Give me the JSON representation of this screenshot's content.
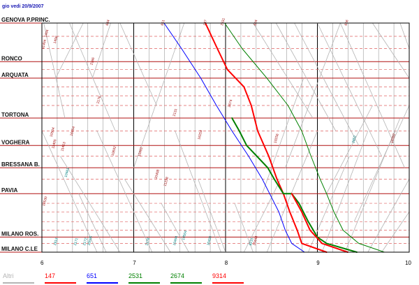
{
  "date_label": "gio vedi 20/9/2007",
  "stations": [
    {
      "name": "GENOVA P.PRINC.",
      "label": "GENOVA P.PRINC.",
      "km": 0
    },
    {
      "name": "RONCO",
      "label": "RONCO",
      "km": 21.5
    },
    {
      "name": "ARQUATA",
      "label": "ARQUATA",
      "km": 30.7
    },
    {
      "name": "TORTONA",
      "label": "TORTONA",
      "km": 52.9
    },
    {
      "name": "VOGHERA",
      "label": "VOGHERA",
      "km": 68.2
    },
    {
      "name": "BRESSANA B.",
      "label": "BRESSANA B.",
      "km": 80.6
    },
    {
      "name": "PAVIA",
      "label": "PAVIA",
      "km": 95.0
    },
    {
      "name": "MILANO ROS.",
      "label": "MILANO ROS.",
      "km": 119.2
    },
    {
      "name": "MILANO C.LE",
      "label": "MILANO C.LE",
      "km": 127.6
    }
  ],
  "minor_stops_km": [
    7.4,
    14.2,
    25.9,
    35.5,
    40.5,
    45.9,
    60.1,
    74.1,
    86.9,
    100.4,
    105.2,
    110.6,
    115.4,
    122.7
  ],
  "time_axis": {
    "start": 6,
    "end": 10,
    "ticks": [
      "6",
      "7",
      "8",
      "9",
      "10"
    ]
  },
  "colors": {
    "station_line": "#b01010",
    "minor_line": "#e06060",
    "hour_line": "#000000",
    "grid_line": "#9a9a9a",
    "other_trains": "#b4b4b4",
    "frame": "#000000",
    "t147": "#ff0000",
    "t651": "#0000ff",
    "t2531": "#008000",
    "t2674": "#008000",
    "t9314": "#ff0000"
  },
  "legend": [
    {
      "id": "altri",
      "label": "Altri",
      "color": "#b4b4b4"
    },
    {
      "id": "t147",
      "label": "147",
      "color": "#ff0000"
    },
    {
      "id": "t651",
      "label": "651",
      "color": "#0000ff"
    },
    {
      "id": "t2531",
      "label": "2531",
      "color": "#008000"
    },
    {
      "id": "t2674",
      "label": "2674",
      "color": "#008000"
    },
    {
      "id": "t9314",
      "label": "9314",
      "color": "#ff0000"
    }
  ],
  "highlighted_trains": [
    {
      "id": "t651",
      "number": "651",
      "color": "#0000ff",
      "width": 1,
      "points": [
        [
          7.33,
          0
        ],
        [
          7.52,
          14.2
        ],
        [
          7.73,
          30.7
        ],
        [
          7.9,
          45.9
        ],
        [
          8.07,
          60.1
        ],
        [
          8.25,
          74.1
        ],
        [
          8.4,
          86.9
        ],
        [
          8.48,
          95.0
        ],
        [
          8.58,
          105.2
        ],
        [
          8.65,
          115.4
        ],
        [
          8.72,
          122.7
        ],
        [
          8.86,
          127.6
        ]
      ]
    },
    {
      "id": "t147",
      "number": "147",
      "color": "#ff0000",
      "width": 2,
      "points": [
        [
          7.78,
          0
        ],
        [
          7.91,
          14.2
        ],
        [
          8.02,
          25.9
        ],
        [
          8.2,
          35.5
        ],
        [
          8.28,
          45.9
        ],
        [
          8.35,
          60.1
        ],
        [
          8.47,
          74.1
        ],
        [
          8.56,
          86.9
        ],
        [
          8.63,
          95.0
        ],
        [
          8.7,
          105.2
        ],
        [
          8.78,
          115.4
        ],
        [
          8.83,
          122.7
        ],
        [
          9.1,
          127.6
        ]
      ]
    },
    {
      "id": "t2531",
      "number": "2531",
      "color": "#008000",
      "width": 1,
      "points": [
        [
          7.99,
          0
        ],
        [
          8.18,
          14.2
        ],
        [
          8.45,
          30.7
        ],
        [
          8.68,
          45.9
        ],
        [
          8.83,
          60.1
        ],
        [
          8.93,
          74.1
        ],
        [
          9.03,
          86.9
        ],
        [
          9.1,
          95.0
        ],
        [
          9.18,
          105.2
        ],
        [
          9.28,
          115.4
        ],
        [
          9.45,
          122.7
        ],
        [
          9.73,
          127.6
        ]
      ]
    },
    {
      "id": "t2674",
      "number": "2674",
      "color": "#008000",
      "width": 2,
      "points": [
        [
          8.07,
          52.9
        ],
        [
          8.15,
          60.1
        ],
        [
          8.23,
          68.2
        ],
        [
          8.34,
          74.1
        ],
        [
          8.46,
          80.6
        ],
        [
          8.53,
          86.9
        ],
        [
          8.63,
          95.0
        ],
        [
          8.72,
          95.0
        ],
        [
          8.8,
          100.4
        ],
        [
          8.9,
          110.6
        ],
        [
          9.0,
          119.2
        ],
        [
          9.1,
          122.7
        ],
        [
          9.43,
          127.6
        ]
      ]
    },
    {
      "id": "t9314",
      "number": "9314",
      "color": "#ff0000",
      "width": 2,
      "points": [
        [
          8.72,
          95.0
        ],
        [
          8.83,
          105.2
        ],
        [
          8.92,
          115.4
        ],
        [
          9.05,
          122.7
        ],
        [
          9.33,
          127.6
        ]
      ]
    }
  ],
  "other_trains": [
    [
      [
        6.02,
        0
      ],
      [
        6.25,
        52.9
      ]
    ],
    [
      [
        6.15,
        30.7
      ],
      [
        6.45,
        0
      ]
    ],
    [
      [
        6.3,
        0
      ],
      [
        6.8,
        60.1
      ]
    ],
    [
      [
        6.55,
        30.7
      ],
      [
        6.75,
        0
      ]
    ],
    [
      [
        6.85,
        0
      ],
      [
        7.25,
        45.9
      ]
    ],
    [
      [
        7.0,
        80.6
      ],
      [
        7.55,
        0
      ]
    ],
    [
      [
        6.0,
        60.1
      ],
      [
        6.6,
        127.6
      ]
    ],
    [
      [
        6.2,
        74.1
      ],
      [
        6.85,
        127.6
      ]
    ],
    [
      [
        6.4,
        95.0
      ],
      [
        6.7,
        127.6
      ]
    ],
    [
      [
        6.6,
        60.1
      ],
      [
        7.2,
        127.6
      ]
    ],
    [
      [
        6.9,
        86.9
      ],
      [
        7.4,
        127.6
      ]
    ],
    [
      [
        7.3,
        100.4
      ],
      [
        7.6,
        127.6
      ]
    ],
    [
      [
        7.45,
        60.1
      ],
      [
        7.95,
        127.6
      ]
    ],
    [
      [
        7.7,
        86.9
      ],
      [
        8.0,
        127.6
      ]
    ],
    [
      [
        8.1,
        100.4
      ],
      [
        8.3,
        127.6
      ]
    ],
    [
      [
        8.3,
        0
      ],
      [
        8.95,
        52.9
      ]
    ],
    [
      [
        8.55,
        0
      ],
      [
        9.2,
        60.1
      ]
    ],
    [
      [
        8.75,
        0
      ],
      [
        9.45,
        68.2
      ]
    ],
    [
      [
        9.0,
        0
      ],
      [
        9.7,
        74.1
      ]
    ],
    [
      [
        9.25,
        0
      ],
      [
        9.95,
        80.6
      ]
    ],
    [
      [
        9.6,
        0
      ],
      [
        10.0,
        30.7
      ]
    ],
    [
      [
        8.9,
        127.6
      ],
      [
        9.35,
        74.1
      ]
    ],
    [
      [
        9.05,
        127.6
      ],
      [
        9.55,
        60.1
      ]
    ],
    [
      [
        9.3,
        127.6
      ],
      [
        9.9,
        52.9
      ]
    ],
    [
      [
        9.55,
        127.6
      ],
      [
        10.0,
        86.9
      ]
    ],
    [
      [
        8.4,
        95.0
      ],
      [
        8.85,
        30.7
      ]
    ],
    [
      [
        8.65,
        80.6
      ],
      [
        9.25,
        0
      ]
    ],
    [
      [
        8.2,
        127.6
      ],
      [
        8.6,
        86.9
      ]
    ],
    [
      [
        8.45,
        127.6
      ],
      [
        9.0,
        60.1
      ]
    ],
    [
      [
        9.1,
        95.0
      ],
      [
        9.6,
        45.9
      ]
    ],
    [
      [
        9.4,
        110.6
      ],
      [
        9.85,
        60.1
      ]
    ],
    [
      [
        9.7,
        127.6
      ],
      [
        10.0,
        105.2
      ]
    ],
    [
      [
        9.8,
        68.2
      ],
      [
        10.0,
        45.9
      ]
    ],
    [
      [
        9.9,
        0
      ],
      [
        10.0,
        14.2
      ]
    ]
  ],
  "train_number_labels": [
    {
      "text": "1494",
      "time": 6.05,
      "km": 8.0,
      "color": "#a01010"
    },
    {
      "text": "1496",
      "time": 6.15,
      "km": 11.5,
      "color": "#a01010"
    },
    {
      "text": "11404",
      "time": 6.02,
      "km": 14.5,
      "color": "#a01010"
    },
    {
      "text": "2166",
      "time": 6.55,
      "km": 23.5,
      "color": "#a01010"
    },
    {
      "text": "2176",
      "time": 6.62,
      "km": 45.0,
      "color": "#a01010"
    },
    {
      "text": "16054",
      "time": 6.33,
      "km": 63.0,
      "color": "#a01010"
    },
    {
      "text": "10504",
      "time": 6.11,
      "km": 63.5,
      "color": "#a01010"
    },
    {
      "text": "11405",
      "time": 6.13,
      "km": 70.0,
      "color": "#a01010"
    },
    {
      "text": "10692",
      "time": 6.78,
      "km": 74.0,
      "color": "#a01010"
    },
    {
      "text": "10492",
      "time": 7.07,
      "km": 74.5,
      "color": "#a01010"
    },
    {
      "text": "11413",
      "time": 6.23,
      "km": 71.5,
      "color": "#a01010"
    },
    {
      "text": "10408",
      "time": 7.25,
      "km": 87.0,
      "color": "#a01010"
    },
    {
      "text": "10461",
      "time": 6.27,
      "km": 86.0,
      "color": "#008080"
    },
    {
      "text": "10530",
      "time": 6.03,
      "km": 102.0,
      "color": "#a01010"
    },
    {
      "text": "1913",
      "time": 6.15,
      "km": 124.0,
      "color": "#008080"
    },
    {
      "text": "2171",
      "time": 6.37,
      "km": 124.0,
      "color": "#008080"
    },
    {
      "text": "2172",
      "time": 6.47,
      "km": 124.0,
      "color": "#008080"
    },
    {
      "text": "10505",
      "time": 6.52,
      "km": 124.0,
      "color": "#008080"
    },
    {
      "text": "2178",
      "time": 7.15,
      "km": 124.0,
      "color": "#008080"
    },
    {
      "text": "10494",
      "time": 7.45,
      "km": 124.0,
      "color": "#008080"
    },
    {
      "text": "10504",
      "time": 7.55,
      "km": 121.0,
      "color": "#008080"
    },
    {
      "text": "10420",
      "time": 7.82,
      "km": 124.0,
      "color": "#008080"
    },
    {
      "text": "8215",
      "time": 8.28,
      "km": 124.0,
      "color": "#008080"
    },
    {
      "text": "10448",
      "time": 8.32,
      "km": 124.0,
      "color": "#a01010"
    },
    {
      "text": "644",
      "time": 6.72,
      "km": 1.5,
      "color": "#a01010"
    },
    {
      "text": "651",
      "time": 7.32,
      "km": 1.5,
      "color": "#a01010"
    },
    {
      "text": "147",
      "time": 7.78,
      "km": 1.5,
      "color": "#a01010"
    },
    {
      "text": "2531",
      "time": 7.97,
      "km": 1.5,
      "color": "#a01010"
    },
    {
      "text": "604",
      "time": 8.33,
      "km": 1.5,
      "color": "#a01010"
    },
    {
      "text": "656",
      "time": 9.32,
      "km": 1.5,
      "color": "#a01010"
    },
    {
      "text": "2131",
      "time": 7.45,
      "km": 52.0,
      "color": "#a01010"
    },
    {
      "text": "2674",
      "time": 8.05,
      "km": 47.0,
      "color": "#a01010"
    },
    {
      "text": "16254",
      "time": 7.72,
      "km": 65.0,
      "color": "#a01010"
    },
    {
      "text": "10256",
      "time": 8.55,
      "km": 67.0,
      "color": "#a01010"
    },
    {
      "text": "2852",
      "time": 9.4,
      "km": 67.0,
      "color": "#008080"
    },
    {
      "text": "10262",
      "time": 9.82,
      "km": 67.0,
      "color": "#a01010"
    },
    {
      "text": "11258",
      "time": 7.35,
      "km": 91.0,
      "color": "#a01010"
    }
  ]
}
